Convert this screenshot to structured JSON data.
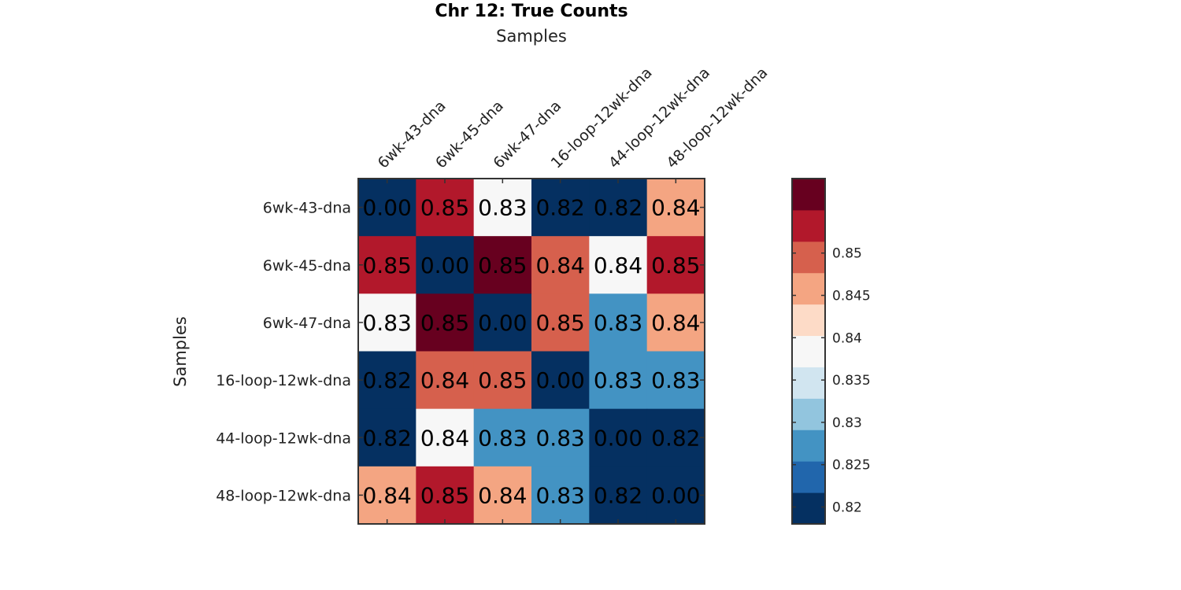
{
  "chart_data": {
    "type": "heatmap",
    "title": "Chr 12: True Counts",
    "xlabel": "Samples",
    "ylabel": "Samples",
    "x_labels": [
      "6wk-43-dna",
      "6wk-45-dna",
      "6wk-47-dna",
      "16-loop-12wk-dna",
      "44-loop-12wk-dna",
      "48-loop-12wk-dna"
    ],
    "y_labels": [
      "6wk-43-dna",
      "6wk-45-dna",
      "6wk-47-dna",
      "16-loop-12wk-dna",
      "44-loop-12wk-dna",
      "48-loop-12wk-dna"
    ],
    "x_axis_position": "top",
    "cell_text": [
      [
        "0.00",
        "0.85",
        "0.83",
        "0.82",
        "0.82",
        "0.84"
      ],
      [
        "0.85",
        "0.00",
        "0.85",
        "0.84",
        "0.84",
        "0.85"
      ],
      [
        "0.83",
        "0.85",
        "0.00",
        "0.85",
        "0.83",
        "0.84"
      ],
      [
        "0.82",
        "0.84",
        "0.85",
        "0.00",
        "0.83",
        "0.83"
      ],
      [
        "0.82",
        "0.84",
        "0.83",
        "0.83",
        "0.00",
        "0.82"
      ],
      [
        "0.84",
        "0.85",
        "0.84",
        "0.83",
        "0.82",
        "0.00"
      ]
    ],
    "cell_color_level": [
      [
        0,
        9,
        5,
        0,
        0,
        7
      ],
      [
        9,
        0,
        10,
        8,
        5,
        9
      ],
      [
        5,
        10,
        0,
        8,
        2,
        7
      ],
      [
        0,
        8,
        8,
        0,
        2,
        2
      ],
      [
        0,
        5,
        2,
        2,
        0,
        0
      ],
      [
        7,
        9,
        7,
        2,
        0,
        0
      ]
    ],
    "colorbar": {
      "min": 0.818,
      "max": 0.8588,
      "ticks": [
        0.82,
        0.825,
        0.83,
        0.835,
        0.84,
        0.845,
        0.85
      ],
      "tick_labels": [
        "0.82",
        "0.825",
        "0.83",
        "0.835",
        "0.84",
        "0.845",
        "0.85"
      ],
      "colors": [
        "#053061",
        "#2166ac",
        "#4393c3",
        "#92c5de",
        "#d1e5f0",
        "#f7f7f7",
        "#fddbc7",
        "#f4a582",
        "#d6604d",
        "#b2182b",
        "#67001f"
      ]
    },
    "grid": false,
    "legend": "none"
  }
}
